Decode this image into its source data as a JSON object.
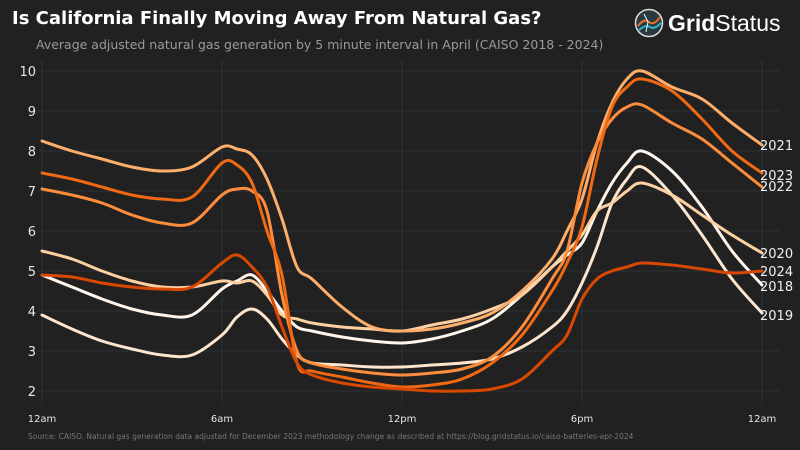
{
  "header": {
    "title": "Is California Finally Moving Away From Natural Gas?",
    "subtitle": "Average adjusted natural gas generation by 5 minute interval in April (CAISO 2018 - 2024)"
  },
  "logo": {
    "text_bold": "Grid",
    "text_light": "Status"
  },
  "footer": {
    "source": "Source: CAISO. Natural gas generation data adjusted for December 2023 methodology change as described at https://blog.gridstatus.io/caiso-batteries-apr-2024"
  },
  "chart_data": {
    "type": "line",
    "title": "Is California Finally Moving Away From Natural Gas?",
    "xlabel": "",
    "ylabel": "",
    "xlim_hours": [
      0,
      24
    ],
    "ylim": [
      1.6,
      10.3
    ],
    "grid": true,
    "legend": "end-of-line labels (right)",
    "x_ticks": [
      {
        "h": 0,
        "label": "12am"
      },
      {
        "h": 6,
        "label": "6am"
      },
      {
        "h": 12,
        "label": "12pm"
      },
      {
        "h": 18,
        "label": "6pm"
      },
      {
        "h": 24,
        "label": "12am"
      }
    ],
    "y_ticks": [
      2,
      3,
      4,
      5,
      6,
      7,
      8,
      9,
      10
    ],
    "x_hours": [
      0,
      1,
      2,
      3,
      4,
      5,
      6,
      6.5,
      7,
      7.5,
      8,
      8.5,
      9,
      10,
      11,
      12,
      13,
      14,
      15,
      16,
      17,
      17.5,
      18,
      18.5,
      19,
      19.5,
      20,
      21,
      22,
      23,
      24
    ],
    "series": [
      {
        "name": "2018",
        "color": "#fff5eb",
        "values": [
          4.9,
          4.6,
          4.3,
          4.05,
          3.9,
          3.9,
          4.55,
          4.75,
          4.9,
          4.5,
          4.0,
          3.6,
          3.5,
          3.35,
          3.25,
          3.2,
          3.3,
          3.5,
          3.8,
          4.4,
          5.1,
          5.4,
          5.7,
          6.5,
          7.2,
          7.7,
          8.0,
          7.5,
          6.6,
          5.5,
          4.65
        ]
      },
      {
        "name": "2019",
        "color": "#fee6ce",
        "values": [
          3.9,
          3.55,
          3.25,
          3.05,
          2.9,
          2.9,
          3.4,
          3.85,
          4.05,
          3.8,
          3.3,
          2.9,
          2.7,
          2.65,
          2.6,
          2.6,
          2.65,
          2.7,
          2.8,
          3.1,
          3.6,
          4.0,
          4.7,
          5.6,
          6.7,
          7.3,
          7.6,
          6.9,
          5.9,
          4.8,
          3.95
        ]
      },
      {
        "name": "2020",
        "color": "#fdd0a2",
        "values": [
          5.5,
          5.3,
          5.0,
          4.75,
          4.6,
          4.6,
          4.75,
          4.7,
          4.75,
          4.4,
          3.9,
          3.8,
          3.7,
          3.6,
          3.55,
          3.5,
          3.65,
          3.8,
          4.05,
          4.4,
          5.1,
          5.5,
          5.9,
          6.5,
          6.7,
          7.0,
          7.2,
          6.9,
          6.4,
          5.9,
          5.45
        ]
      },
      {
        "name": "2021",
        "color": "#fdae6b",
        "values": [
          8.25,
          8.0,
          7.8,
          7.6,
          7.5,
          7.6,
          8.1,
          8.05,
          7.9,
          7.3,
          6.3,
          5.1,
          4.8,
          4.1,
          3.6,
          3.5,
          3.55,
          3.7,
          3.95,
          4.5,
          5.3,
          6.0,
          6.8,
          8.2,
          9.2,
          9.8,
          10.0,
          9.6,
          9.3,
          8.7,
          8.15
        ]
      },
      {
        "name": "2022",
        "color": "#fd8d3c",
        "values": [
          7.05,
          6.9,
          6.7,
          6.4,
          6.2,
          6.2,
          6.9,
          7.05,
          7.0,
          6.5,
          4.4,
          3.0,
          2.7,
          2.55,
          2.45,
          2.4,
          2.45,
          2.55,
          2.85,
          3.6,
          4.8,
          5.5,
          7.2,
          8.2,
          8.8,
          9.1,
          9.15,
          8.7,
          8.3,
          7.7,
          7.1
        ]
      },
      {
        "name": "2023",
        "color": "#f16913",
        "values": [
          7.45,
          7.3,
          7.1,
          6.9,
          6.8,
          6.85,
          7.7,
          7.65,
          7.2,
          6.0,
          4.9,
          2.7,
          2.5,
          2.35,
          2.2,
          2.1,
          2.15,
          2.3,
          2.7,
          3.4,
          4.5,
          5.2,
          6.1,
          7.8,
          9.1,
          9.6,
          9.8,
          9.5,
          8.8,
          8.0,
          7.45
        ]
      },
      {
        "name": "2024",
        "color": "#d94801",
        "values": [
          4.9,
          4.85,
          4.7,
          4.6,
          4.55,
          4.6,
          5.2,
          5.4,
          5.1,
          4.6,
          3.6,
          2.7,
          2.4,
          2.2,
          2.1,
          2.05,
          2.0,
          2.0,
          2.05,
          2.3,
          3.0,
          3.4,
          4.3,
          4.8,
          5.0,
          5.1,
          5.2,
          5.15,
          5.05,
          4.95,
          5.0
        ]
      }
    ]
  }
}
